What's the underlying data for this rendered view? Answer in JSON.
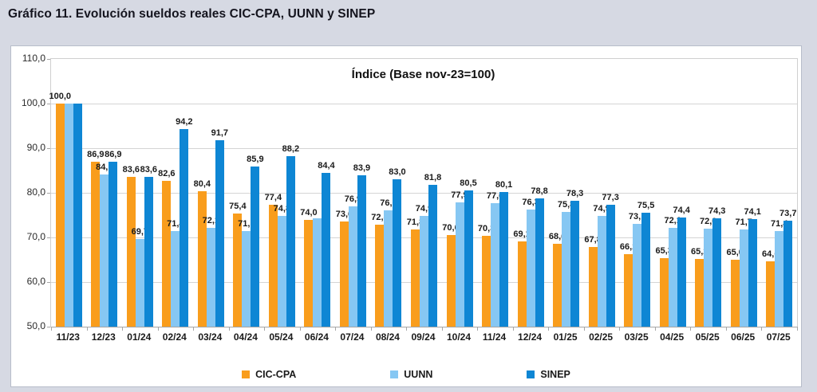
{
  "page": {
    "title": "Gráfico 11. Evolución sueldos reales CIC-CPA, UUNN y SINEP"
  },
  "chart_data": {
    "type": "bar",
    "title": "Índice (Base nov-23=100)",
    "categories": [
      "11/23",
      "12/23",
      "01/24",
      "02/24",
      "03/24",
      "04/24",
      "05/24",
      "06/24",
      "07/24",
      "08/24",
      "09/24",
      "10/24",
      "11/24",
      "12/24",
      "01/25",
      "02/25",
      "03/25",
      "04/25",
      "05/25",
      "06/25",
      "07/25"
    ],
    "series": [
      {
        "name": "CIC-CPA",
        "color": "#F99D1C",
        "values": [
          100.0,
          86.9,
          83.6,
          82.6,
          80.4,
          75.4,
          77.4,
          74.0,
          73.6,
          72.8,
          71.8,
          70.6,
          70.3,
          69.1,
          68.6,
          67.8,
          66.2,
          65.3,
          65.2,
          65.0,
          64.6
        ],
        "labels": [
          "100,0",
          "86,9",
          "83,6",
          "82,6",
          "80,4",
          "75,4",
          "77,4",
          "74,0",
          "73,6",
          "72,8",
          "71,8",
          "70,6",
          "70,3",
          "69,1",
          "68,6",
          "67,8",
          "66,2",
          "65,3",
          "65,2",
          "65,0",
          "64,6"
        ]
      },
      {
        "name": "UUNN",
        "color": "#86C7F3",
        "values": [
          100.0,
          84.1,
          69.7,
          71.4,
          72.1,
          71.5,
          74.8,
          74.3,
          76.9,
          76.0,
          74.9,
          77.9,
          77.6,
          76.3,
          75.8,
          74.9,
          73.1,
          72.1,
          72.0,
          71.7,
          71.4
        ],
        "labels": [
          null,
          "84,1",
          "69,7",
          "71,4",
          "72,1",
          "71,5",
          "74,8",
          null,
          "76,9",
          "76,0",
          "74,9",
          "77,9",
          "77,6",
          "76,3",
          "75,8",
          "74,9",
          "73,1",
          "72,1",
          "72,0",
          "71,7",
          "71,4"
        ]
      },
      {
        "name": "SINEP",
        "color": "#0E86D4",
        "values": [
          100.0,
          86.9,
          83.6,
          94.2,
          91.7,
          85.9,
          88.2,
          84.4,
          83.9,
          83.0,
          81.8,
          80.5,
          80.1,
          78.8,
          78.3,
          77.3,
          75.5,
          74.4,
          74.3,
          74.1,
          73.7
        ],
        "labels": [
          null,
          "86,9",
          "83,6",
          "94,2",
          "91,7",
          "85,9",
          "88,2",
          "84,4",
          "83,9",
          "83,0",
          "81,8",
          "80,5",
          "80,1",
          "78,8",
          "78,3",
          "77,3",
          "75,5",
          "74,4",
          "74,3",
          "74,1",
          "73,7"
        ]
      }
    ],
    "ylim": [
      50,
      110
    ],
    "ytick_values": [
      110,
      100,
      90,
      80,
      70,
      60,
      50
    ],
    "ytick_labels": [
      "110,0",
      "100,0",
      "90,0",
      "80,0",
      "70,0",
      "60,0",
      "50,0"
    ],
    "grid": true,
    "legend_position": "bottom",
    "colors": {
      "page_background": "#d6d9e3",
      "chart_background": "#ffffff",
      "gridline": "#d4d4d4",
      "axis": "#a6a6a6"
    }
  }
}
